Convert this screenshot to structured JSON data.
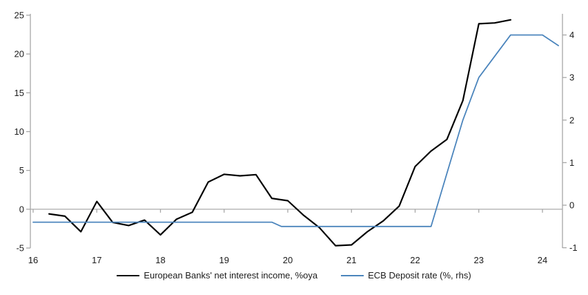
{
  "chart_data": {
    "type": "line",
    "title": "",
    "xlabel": "",
    "ylabel_left": "",
    "ylabel_right": "",
    "x_axis": {
      "ticks": [
        16,
        17,
        18,
        19,
        20,
        21,
        22,
        23,
        24
      ],
      "range": [
        15.96,
        24.31
      ]
    },
    "left_axis": {
      "ticks": [
        -5,
        0,
        5,
        10,
        15,
        20,
        25
      ],
      "range": [
        -5,
        25
      ]
    },
    "right_axis": {
      "ticks": [
        -1,
        0,
        1,
        2,
        3,
        4
      ],
      "range": [
        -1,
        4.5
      ]
    },
    "grid": "zero-line-only",
    "legend_position": "bottom-center",
    "axis_color": "#a6a6a6",
    "zero_line_color": "#b2b2b2",
    "series": [
      {
        "name": "European Banks' net interest income, %oya",
        "axis": "left",
        "color": "#000000",
        "width": 2.2,
        "points": [
          [
            16.25,
            -0.6
          ],
          [
            16.5,
            -0.9
          ],
          [
            16.75,
            -2.9
          ],
          [
            17.0,
            1.0
          ],
          [
            17.25,
            -1.7
          ],
          [
            17.5,
            -2.1
          ],
          [
            17.75,
            -1.4
          ],
          [
            18.0,
            -3.3
          ],
          [
            18.25,
            -1.3
          ],
          [
            18.5,
            -0.4
          ],
          [
            18.75,
            3.5
          ],
          [
            19.0,
            4.5
          ],
          [
            19.25,
            4.3
          ],
          [
            19.5,
            4.45
          ],
          [
            19.75,
            1.4
          ],
          [
            20.0,
            1.1
          ],
          [
            20.25,
            -0.8
          ],
          [
            20.5,
            -2.4
          ],
          [
            20.75,
            -4.7
          ],
          [
            21.0,
            -4.6
          ],
          [
            21.25,
            -2.9
          ],
          [
            21.5,
            -1.5
          ],
          [
            21.75,
            0.4
          ],
          [
            22.0,
            5.5
          ],
          [
            22.25,
            7.5
          ],
          [
            22.5,
            9.0
          ],
          [
            22.75,
            14.0
          ],
          [
            23.0,
            23.9
          ],
          [
            23.25,
            24.0
          ],
          [
            23.5,
            24.4
          ]
        ]
      },
      {
        "name": "ECB Deposit rate (%, rhs)",
        "axis": "right",
        "color": "#4a84bc",
        "width": 1.8,
        "points": [
          [
            16.0,
            -0.4
          ],
          [
            19.75,
            -0.4
          ],
          [
            19.9,
            -0.5
          ],
          [
            22.25,
            -0.5
          ],
          [
            22.5,
            0.75
          ],
          [
            22.75,
            2.0
          ],
          [
            23.0,
            3.0
          ],
          [
            23.25,
            3.5
          ],
          [
            23.5,
            4.0
          ],
          [
            24.0,
            4.0
          ],
          [
            24.25,
            3.75
          ]
        ]
      }
    ]
  }
}
